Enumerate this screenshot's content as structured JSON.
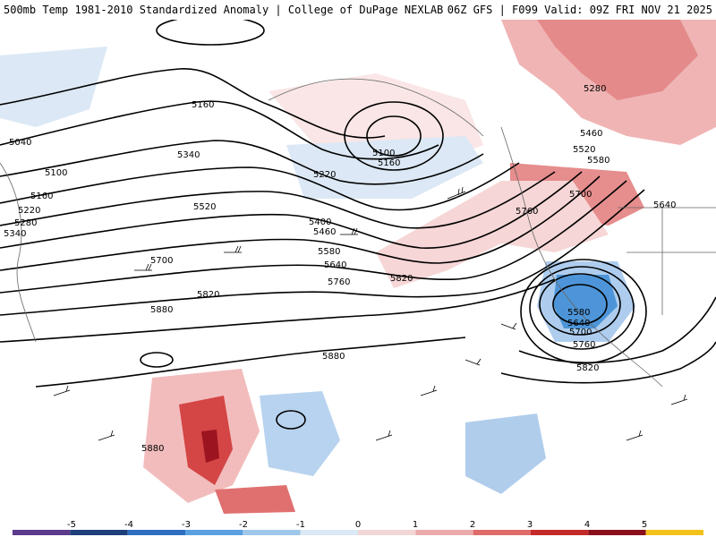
{
  "header": {
    "left_title": "500mb Temp 1981-2010 Standardized Anomaly | College of DuPage NEXLAB",
    "right_title": "06Z GFS | F099 Valid: 09Z FRI NOV 21 2025"
  },
  "contour_labels": [
    "5040",
    "5100",
    "5160",
    "5220",
    "5280",
    "5340",
    "5160",
    "5340",
    "5520",
    "5700",
    "5820",
    "5880",
    "5400",
    "5460",
    "5580",
    "5640",
    "5760",
    "5100",
    "5160",
    "5220",
    "5880",
    "5820",
    "5880",
    "5280",
    "5460",
    "5520",
    "5580",
    "5700",
    "5640",
    "5760",
    "5580",
    "5640",
    "5700",
    "5760",
    "5820"
  ],
  "colorbar": {
    "ticks": [
      "-5",
      "-4",
      "-3",
      "-2",
      "-1",
      "0",
      "1",
      "2",
      "3",
      "4",
      "5"
    ],
    "colors": [
      "#5b3a8c",
      "#1f3f7a",
      "#2f6fc0",
      "#5aa0e0",
      "#9fc7ea",
      "#dbe8f5",
      "#f3d6d6",
      "#ebaaaa",
      "#e06b6b",
      "#c42a2a",
      "#8a0f1a",
      "#f2c21a"
    ]
  },
  "colors": {
    "warm_light": "#f6dcdc",
    "warm_mid": "#ee9a9a",
    "warm_dark": "#c43030",
    "cold_light": "#d8e6f4",
    "cold_mid": "#8fbde6",
    "cold_dark": "#3a86d0",
    "contour": "#000000",
    "coast": "#666666"
  }
}
